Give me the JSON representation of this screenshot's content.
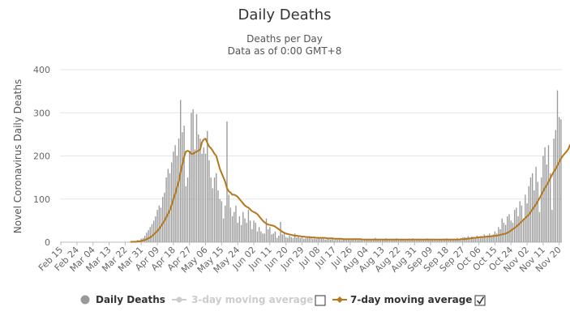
{
  "chart_data": {
    "type": "bar",
    "title": "Daily Deaths",
    "subtitle_line1": "Deaths per Day",
    "subtitle_line2": "Data as of 0:00 GMT+8",
    "ylabel": "Novel Coronavirus Daily Deaths",
    "xlabel": "",
    "ylim": [
      0,
      400
    ],
    "yticks": [
      "0",
      "100",
      "200",
      "300",
      "400"
    ],
    "xtick_labels": [
      "Feb 15",
      "Feb 24",
      "Mar 04",
      "Mar 13",
      "Mar 22",
      "Mar 31",
      "Apr 09",
      "Apr 18",
      "Apr 27",
      "May 06",
      "May 15",
      "May 24",
      "Jun 02",
      "Jun 11",
      "Jun 20",
      "Jun 29",
      "Jul 08",
      "Jul 17",
      "Jul 26",
      "Aug 04",
      "Aug 13",
      "Aug 22",
      "Aug 31",
      "Sep 09",
      "Sep 18",
      "Sep 27",
      "Oct 06",
      "Oct 15",
      "Oct 24",
      "Nov 02",
      "Nov 11",
      "Nov 20"
    ],
    "grid": true,
    "legend_position": "bottom",
    "colors": {
      "bars": "#9a9a9a",
      "avg7": "#b5781a",
      "avg3_disabled": "#cccccc",
      "legend_text": "#333333"
    },
    "series": [
      {
        "name": "Daily Deaths",
        "x_start": "Feb 15",
        "x_end": "Nov 20",
        "values": [
          0,
          0,
          0,
          0,
          0,
          0,
          0,
          0,
          0,
          0,
          0,
          0,
          0,
          0,
          0,
          0,
          0,
          0,
          0,
          0,
          0,
          0,
          0,
          0,
          0,
          0,
          0,
          0,
          0,
          0,
          0,
          0,
          0,
          0,
          0,
          0,
          1,
          0,
          1,
          2,
          0,
          3,
          3,
          5,
          4,
          8,
          10,
          15,
          22,
          28,
          35,
          42,
          50,
          60,
          75,
          85,
          80,
          105,
          115,
          150,
          170,
          160,
          185,
          210,
          225,
          200,
          240,
          330,
          255,
          270,
          130,
          150,
          210,
          300,
          308,
          215,
          297,
          250,
          240,
          205,
          220,
          205,
          258,
          190,
          150,
          125,
          150,
          160,
          120,
          100,
          95,
          55,
          85,
          280,
          110,
          80,
          60,
          70,
          85,
          45,
          60,
          40,
          70,
          55,
          45,
          75,
          50,
          30,
          50,
          45,
          25,
          35,
          25,
          20,
          20,
          55,
          30,
          35,
          18,
          20,
          25,
          10,
          15,
          47,
          18,
          20,
          12,
          10,
          15,
          12,
          10,
          20,
          11,
          15,
          10,
          12,
          8,
          9,
          10,
          11,
          10,
          8,
          9,
          7,
          12,
          9,
          8,
          10,
          6,
          7,
          8,
          6,
          8,
          5,
          9,
          6,
          7,
          5,
          8,
          6,
          7,
          6,
          5,
          8,
          6,
          9,
          5,
          7,
          6,
          4,
          7,
          6,
          8,
          5,
          7,
          6,
          10,
          5,
          7,
          6,
          8,
          5,
          9,
          6,
          7,
          5,
          8,
          6,
          9,
          7,
          6,
          8,
          5,
          7,
          6,
          8,
          5,
          9,
          6,
          7,
          5,
          8,
          6,
          7,
          5,
          9,
          6,
          8,
          5,
          7,
          6,
          4,
          7,
          6,
          8,
          5,
          9,
          6,
          7,
          5,
          8,
          6,
          10,
          7,
          9,
          11,
          12,
          10,
          14,
          9,
          13,
          12,
          10,
          15,
          11,
          14,
          13,
          18,
          12,
          16,
          20,
          15,
          18,
          25,
          20,
          35,
          30,
          55,
          45,
          40,
          60,
          65,
          50,
          45,
          75,
          80,
          60,
          95,
          85,
          55,
          110,
          90,
          130,
          150,
          160,
          120,
          175,
          140,
          70,
          150,
          200,
          220,
          180,
          225,
          160,
          75,
          240,
          260,
          352,
          290,
          285
        ]
      },
      {
        "name": "3-day moving average",
        "disabled": true,
        "values": []
      },
      {
        "name": "7-day moving average",
        "values": [
          0,
          0,
          0,
          0,
          0,
          0,
          0,
          0,
          0,
          0,
          0,
          0,
          0,
          0,
          0,
          0,
          0,
          0,
          0,
          0,
          0,
          0,
          0,
          0,
          0,
          0,
          0,
          0,
          0,
          0,
          0,
          0,
          0,
          0,
          0,
          0,
          0,
          0,
          0,
          1,
          1,
          1,
          1,
          2,
          2,
          3,
          4,
          5,
          7,
          9,
          11,
          14,
          18,
          22,
          26,
          31,
          37,
          43,
          50,
          58,
          66,
          74,
          86,
          100,
          112,
          128,
          140,
          162,
          180,
          198,
          210,
          212,
          210,
          205,
          205,
          208,
          210,
          212,
          215,
          232,
          238,
          240,
          230,
          222,
          218,
          212,
          205,
          200,
          185,
          170,
          160,
          150,
          140,
          125,
          118,
          115,
          110,
          110,
          108,
          105,
          100,
          95,
          90,
          85,
          82,
          80,
          76,
          72,
          70,
          68,
          65,
          60,
          55,
          50,
          46,
          43,
          41,
          40,
          39,
          38,
          36,
          33,
          30,
          27,
          24,
          22,
          20,
          19,
          18,
          17,
          16,
          15,
          15,
          14,
          14,
          13,
          13,
          12,
          12,
          12,
          11,
          11,
          11,
          10,
          10,
          10,
          10,
          10,
          10,
          9,
          9,
          9,
          9,
          8,
          8,
          8,
          8,
          8,
          7,
          7,
          7,
          7,
          7,
          7,
          7,
          7,
          7,
          7,
          7,
          6,
          6,
          6,
          6,
          6,
          6,
          6,
          6,
          6,
          6,
          6,
          6,
          6,
          6,
          6,
          6,
          6,
          6,
          6,
          6,
          6,
          6,
          6,
          6,
          6,
          6,
          6,
          6,
          6,
          6,
          6,
          6,
          6,
          6,
          6,
          6,
          6,
          6,
          6,
          6,
          6,
          6,
          6,
          6,
          6,
          6,
          6,
          6,
          6,
          6,
          6,
          6,
          6,
          6,
          6,
          7,
          7,
          7,
          8,
          8,
          9,
          9,
          10,
          10,
          11,
          11,
          12,
          12,
          12,
          13,
          13,
          13,
          14,
          14,
          15,
          15,
          16,
          17,
          18,
          19,
          20,
          22,
          24,
          27,
          30,
          33,
          36,
          40,
          44,
          48,
          52,
          56,
          60,
          64,
          70,
          76,
          82,
          88,
          95,
          102,
          110,
          118,
          126,
          132,
          140,
          148,
          156,
          164,
          170,
          178,
          186,
          194,
          200,
          205,
          210,
          215,
          225,
          228
        ]
      }
    ]
  },
  "legend": {
    "items": [
      {
        "label": "Daily Deaths",
        "state": "active"
      },
      {
        "label": "3-day moving average",
        "state": "disabled",
        "checked": false
      },
      {
        "label": "7-day moving average",
        "state": "active",
        "checked": true
      }
    ]
  }
}
